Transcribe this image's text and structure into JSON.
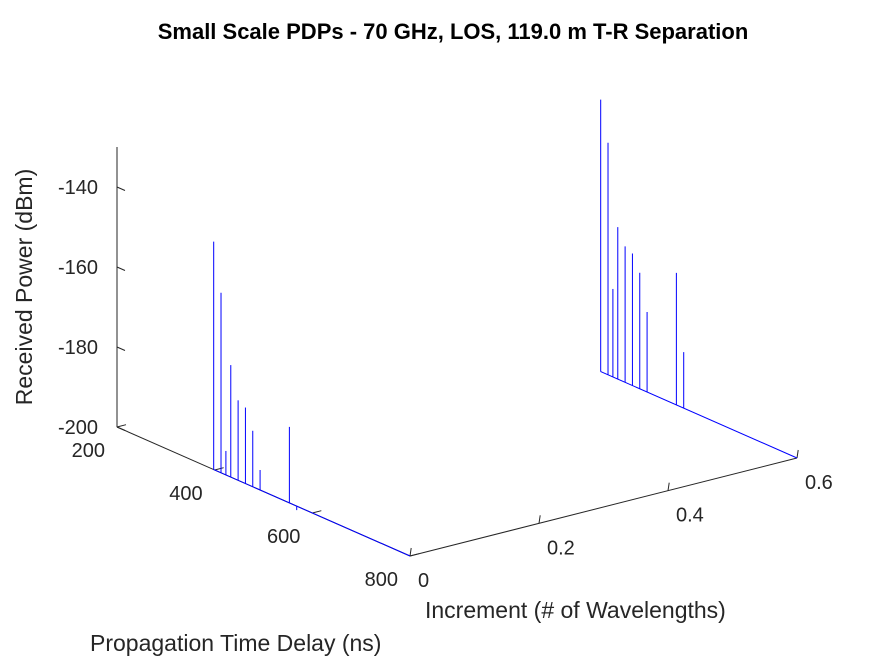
{
  "chart_data": {
    "type": "3d-stem",
    "title": "Small Scale PDPs - 70 GHz, LOS, 119.0 m T-R Separation",
    "xlabel": "Increment (# of Wavelengths)",
    "ylabel": "Propagation Time Delay (ns)",
    "zlabel": "Received Power (dBm)",
    "xlim": [
      0,
      0.6
    ],
    "ylim": [
      200,
      800
    ],
    "zlim": [
      -200,
      -130
    ],
    "xticks": [
      "0",
      "0.2",
      "0.4",
      "0.6"
    ],
    "yticks": [
      "200",
      "400",
      "600",
      "800"
    ],
    "zticks": [
      "-200",
      "-180",
      "-160",
      "-140"
    ],
    "grid": false,
    "color": "#0000ff",
    "series": [
      {
        "increment": 0.0,
        "delays": [
          398,
          413,
          423,
          433,
          448,
          463,
          478,
          493,
          553,
          568
        ],
        "powers": [
          -143,
          -155,
          -194,
          -172,
          -180,
          -181,
          -186,
          -195,
          -181,
          -201
        ]
      },
      {
        "increment": 0.6,
        "delays": [
          398,
          413,
          423,
          433,
          448,
          463,
          478,
          493,
          553,
          568
        ],
        "powers": [
          -132,
          -142,
          -178,
          -162,
          -166,
          -167,
          -171,
          -180,
          -167,
          -186
        ]
      }
    ]
  }
}
